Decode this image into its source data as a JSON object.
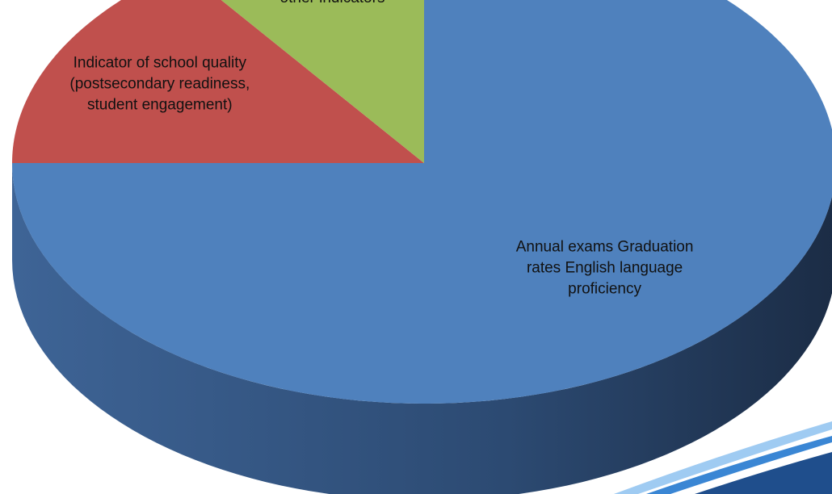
{
  "chart_data": {
    "type": "pie",
    "title": "",
    "slices": [
      {
        "label_lines": [
          "Annual exams Graduation",
          "rates English language",
          "proficiency"
        ],
        "value": 75,
        "color": "#4F81BD",
        "side_dark": "#1F3350",
        "side_light": "#3C628F"
      },
      {
        "label_lines": [
          "Indicator of school quality",
          "(postsecondary readiness,",
          "student engagement)"
        ],
        "value": 15,
        "color": "#C0504D",
        "side_dark": "#8E3432",
        "side_light": "#B6504B"
      },
      {
        "label_lines": [
          "other indicators"
        ],
        "value": 10,
        "color": "#9BBB59",
        "side_dark": "#6F8A3C",
        "side_light": "#8DAA52"
      }
    ],
    "style": "3d",
    "legend": "none"
  },
  "decoration": {
    "corner_swoosh_colors": [
      "#1F4E8C",
      "#3A86D4",
      "#9FCBF2"
    ]
  }
}
